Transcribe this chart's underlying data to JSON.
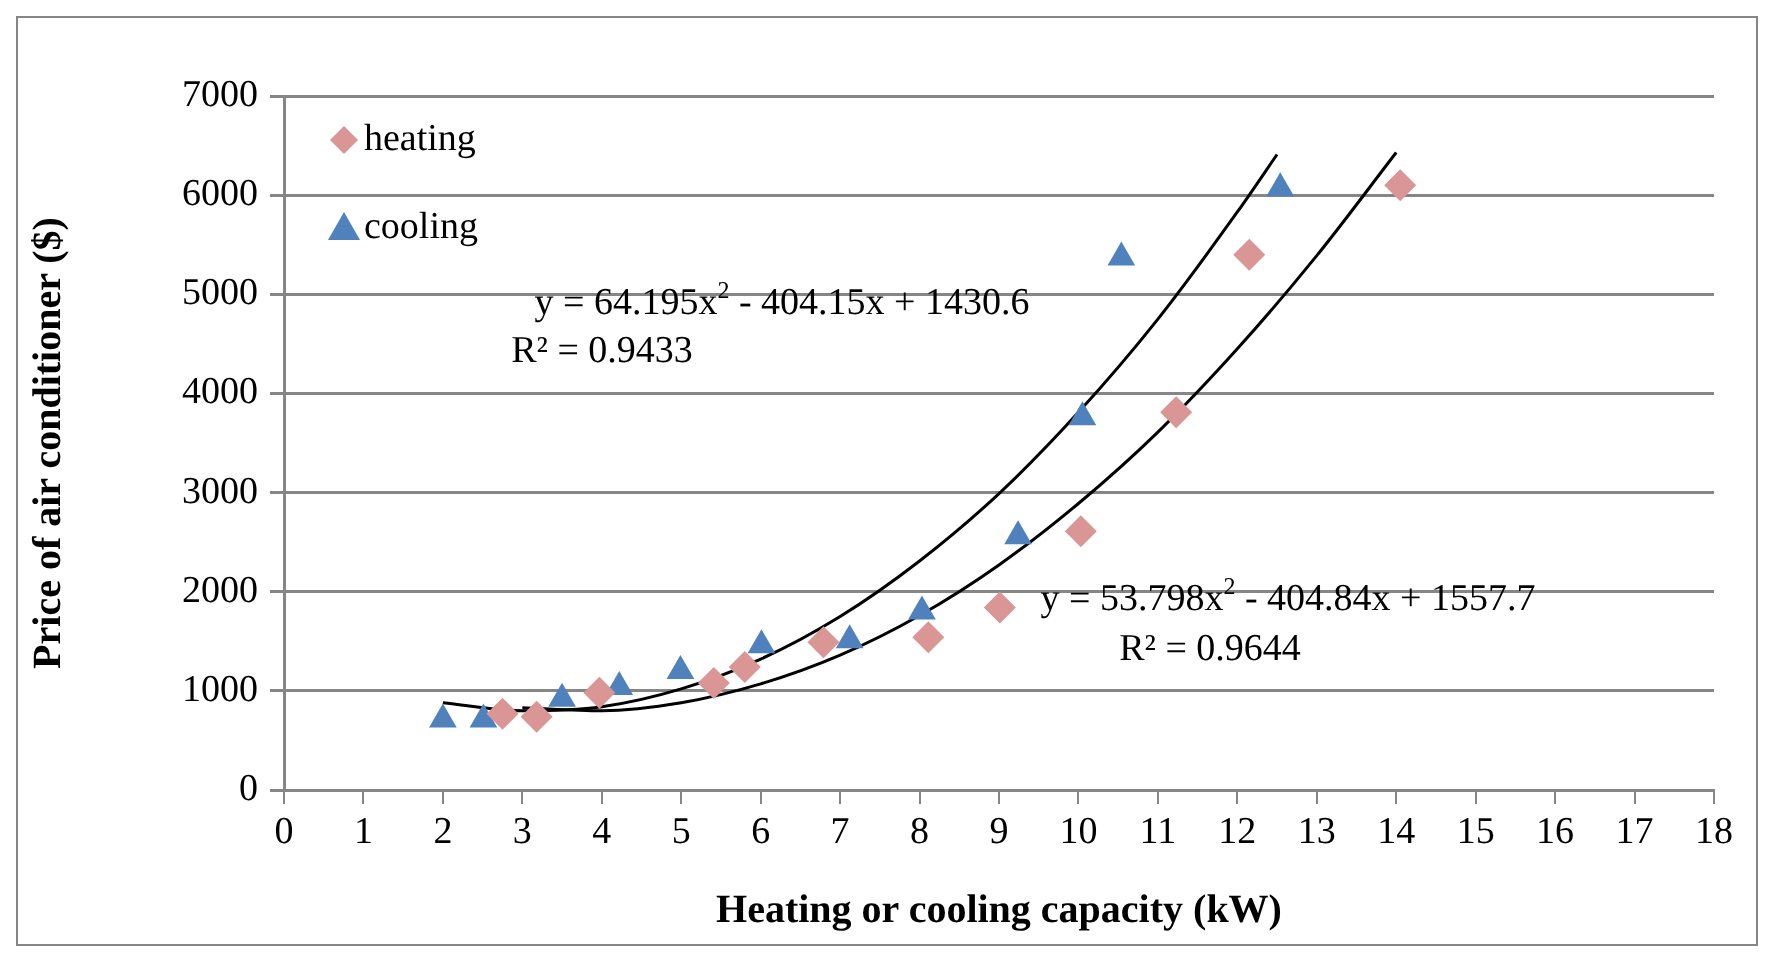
{
  "chart_data": {
    "type": "scatter",
    "xlabel": "Heating or cooling capacity (kW)",
    "ylabel": "Price of air conditioner ($)",
    "xlim": [
      0,
      18
    ],
    "xticks": [
      0,
      1,
      2,
      3,
      4,
      5,
      6,
      7,
      8,
      9,
      10,
      11,
      12,
      13,
      14,
      15,
      16,
      17,
      18
    ],
    "ylim": [
      0,
      7000
    ],
    "yticks": [
      0,
      1000,
      2000,
      3000,
      4000,
      5000,
      6000,
      7000
    ],
    "grid": "y",
    "legend": "top left",
    "series": [
      {
        "name": "heating",
        "color": "#d99694",
        "marker": "diamond",
        "x": [
          2.75,
          3.18,
          3.97,
          5.41,
          5.8,
          6.79,
          8.11,
          9.01,
          10.03,
          11.23,
          12.15,
          14.05
        ],
        "values": [
          770,
          740,
          980,
          1080,
          1240,
          1490,
          1540,
          1840,
          2610,
          3810,
          5400,
          6100
        ]
      },
      {
        "name": "cooling",
        "color": "#4f81bd",
        "marker": "triangle",
        "x": [
          2,
          2.51,
          3.5,
          4.22,
          4.99,
          6.01,
          7.12,
          8.03,
          9.24,
          10.05,
          10.54,
          12.54
        ],
        "values": [
          710,
          710,
          920,
          1040,
          1200,
          1460,
          1510,
          1800,
          2560,
          3760,
          5370,
          6070
        ]
      },
      {
        "type": "line",
        "color": "#000000",
        "marker": "none",
        "x": [
          2,
          3,
          4,
          5,
          6,
          7,
          8,
          9,
          10,
          11,
          12,
          12.5
        ],
        "values": [
          880,
          800,
          840,
          1020,
          1320,
          1750,
          2310,
          2990,
          3810,
          4750,
          5830,
          6410
        ]
      },
      {
        "type": "line",
        "color": "#000000",
        "marker": "none",
        "x": [
          3,
          4,
          5,
          6,
          7,
          8,
          9,
          10,
          11,
          12,
          13,
          14
        ],
        "values": [
          830,
          800,
          880,
          1070,
          1360,
          1760,
          2270,
          2890,
          3610,
          4450,
          5390,
          6430
        ]
      }
    ],
    "annotations": [
      "y = 64.195x$^{2}$ - 404.15x + 1430.6",
      "R² = 0.9433",
      "y = 53.798x$^{2}$ - 404.84x + 1557.7",
      "R² = 0.9644"
    ]
  }
}
